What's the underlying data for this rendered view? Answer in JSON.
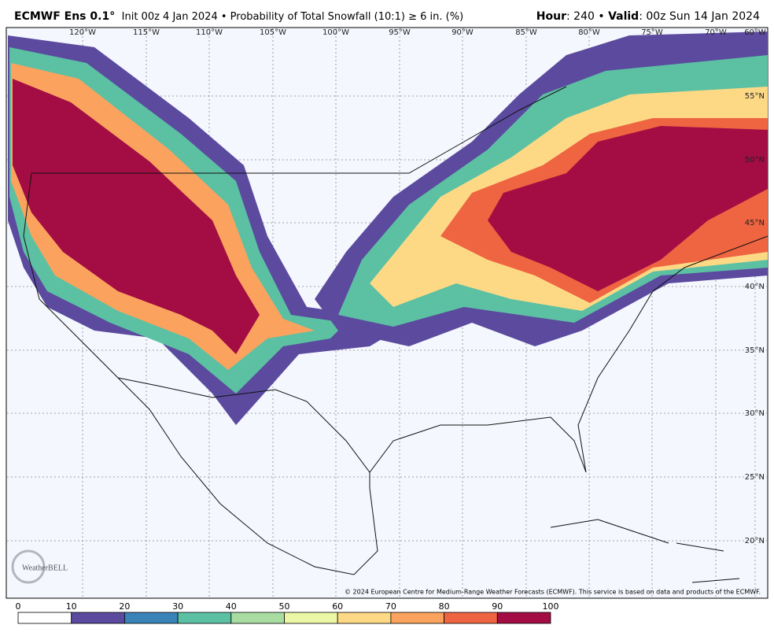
{
  "header": {
    "title": "ECMWF Ens 0.1°",
    "subtitle": "Init 00z 4 Jan 2024 • Probability of Total Snowfall (10:1) ≥ 6 in. (%)",
    "hour_label": "Hour",
    "hour_text": ": 240 • ",
    "valid_label": "Valid",
    "valid_text": ": 00z Sun 14 Jan 2024"
  },
  "map": {
    "lon_labels": [
      "120°W",
      "115°W",
      "110°W",
      "105°W",
      "100°W",
      "95°W",
      "90°W",
      "85°W",
      "80°W",
      "75°W",
      "70°W",
      "60°W"
    ],
    "lat_labels": [
      "55°N",
      "50°N",
      "45°N",
      "40°N",
      "35°N",
      "30°N",
      "25°N",
      "20°N"
    ],
    "credit": "© 2024 European Centre for Medium-Range Weather Forecasts (ECMWF). This service is based on data and products of the ECMWF.",
    "logo": "WeatherBELL"
  },
  "colorbar": {
    "ticks": [
      0,
      10,
      20,
      30,
      40,
      50,
      60,
      70,
      80,
      90,
      100
    ],
    "colors": [
      "#ffffff",
      "#5b4a9e",
      "#3a83b8",
      "#5cc0a3",
      "#a8dca0",
      "#ecf7a6",
      "#fdd985",
      "#fba35e",
      "#ef6441",
      "#a30d44"
    ]
  }
}
